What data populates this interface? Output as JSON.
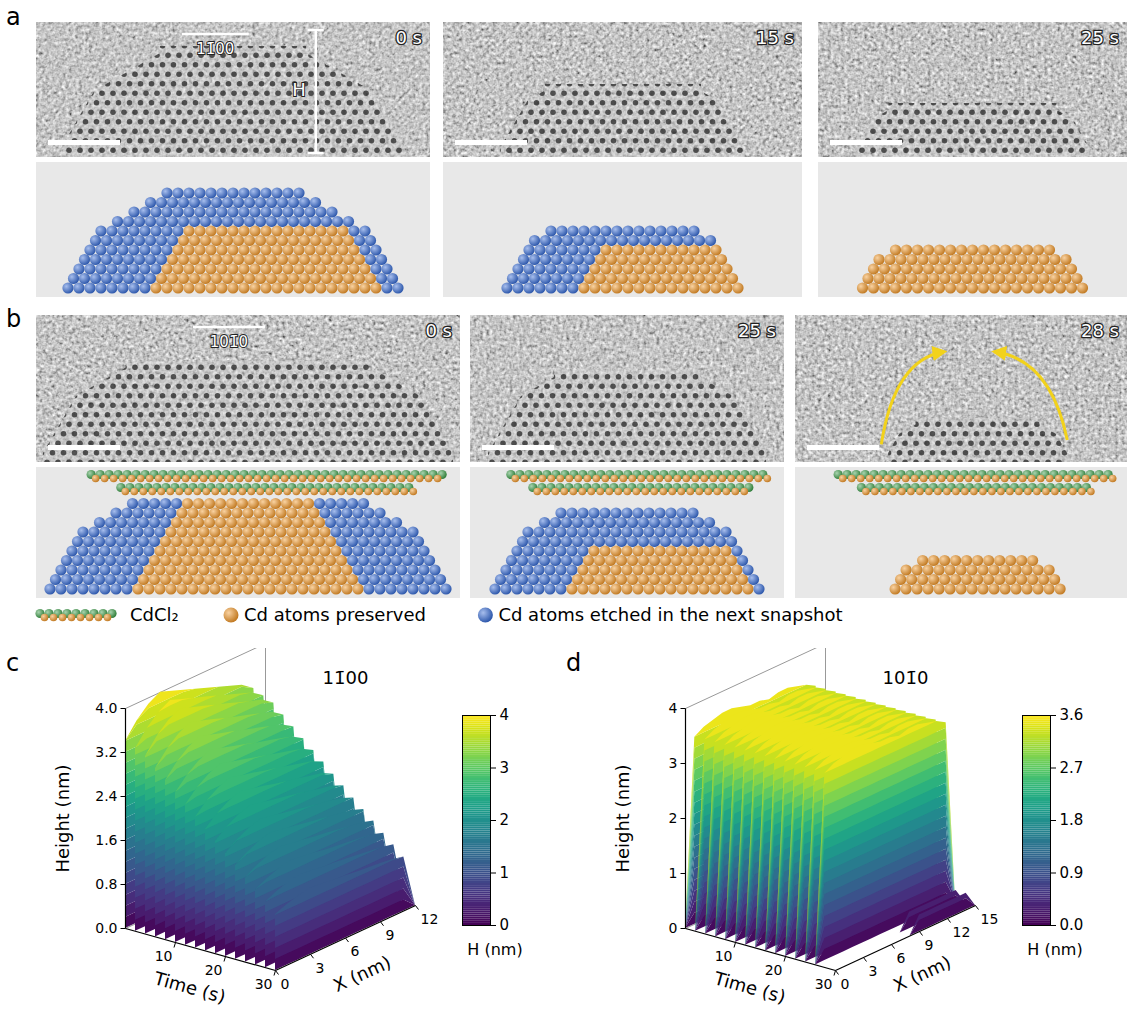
{
  "figure": {
    "panels": [
      {
        "letter": "a",
        "images": [
          {
            "time": "0 s",
            "direction": "11̄00",
            "height_marker": "H"
          },
          {
            "time": "15 s"
          },
          {
            "time": "25 s"
          }
        ]
      },
      {
        "letter": "b",
        "images": [
          {
            "time": "0 s",
            "direction": "101̄0"
          },
          {
            "time": "25 s"
          },
          {
            "time": "28 s"
          }
        ]
      }
    ],
    "legend": [
      {
        "label": "CdCl₂",
        "colors": [
          "#3e9e4a",
          "#f29a2e"
        ]
      },
      {
        "label": "Cd atoms preserved",
        "color": "#f29a2e"
      },
      {
        "label": "Cd atoms etched in the next snapshot",
        "color": "#3b6fd6"
      }
    ]
  },
  "chart_data": [
    {
      "panel": "c",
      "type": "surface",
      "title": "11̄00",
      "xlabel": "X (nm)",
      "ylabel": "Time (s)",
      "zlabel": "Height (nm)",
      "x": [
        0,
        1,
        2,
        3,
        4,
        5,
        6,
        7,
        8,
        9,
        10,
        11,
        12
      ],
      "y": [
        0,
        2,
        4,
        6,
        8,
        10,
        12,
        14,
        16,
        18,
        20,
        22,
        24,
        26,
        28,
        30
      ],
      "values": [
        [
          3.4,
          3.68,
          3.88,
          4.0,
          3.92,
          3.84,
          3.76,
          3.68,
          3.6,
          3.52,
          3.44,
          3.28,
          0
        ],
        [
          3.32,
          3.59,
          3.78,
          3.9,
          3.82,
          3.74,
          3.67,
          3.59,
          3.51,
          3.43,
          3.35,
          3.2,
          0
        ],
        [
          3.23,
          3.5,
          3.69,
          3.8,
          3.72,
          3.65,
          3.57,
          3.5,
          3.42,
          3.34,
          3.27,
          3.12,
          0
        ],
        [
          3.06,
          3.31,
          3.49,
          3.6,
          3.53,
          3.46,
          3.38,
          3.31,
          3.24,
          3.17,
          3.1,
          2.95,
          0
        ],
        [
          2.89,
          3.13,
          3.3,
          3.4,
          3.33,
          3.26,
          3.2,
          3.13,
          3.06,
          2.99,
          2.92,
          2.79,
          0
        ],
        [
          2.72,
          2.94,
          3.1,
          3.2,
          3.14,
          3.07,
          3.01,
          2.94,
          2.88,
          2.82,
          2.75,
          2.62,
          0
        ],
        [
          2.55,
          2.76,
          2.91,
          3.0,
          2.94,
          2.88,
          2.82,
          2.76,
          2.7,
          2.64,
          2.58,
          2.46,
          0
        ],
        [
          2.38,
          2.58,
          2.72,
          2.8,
          2.74,
          2.69,
          2.63,
          2.58,
          2.52,
          2.46,
          2.41,
          2.3,
          0
        ],
        [
          2.21,
          2.39,
          2.52,
          2.6,
          2.55,
          2.5,
          2.44,
          2.39,
          2.34,
          2.29,
          2.24,
          2.13,
          0
        ],
        [
          2.04,
          2.21,
          2.33,
          2.4,
          2.35,
          2.3,
          2.26,
          2.21,
          2.16,
          2.11,
          2.06,
          1.97,
          0
        ],
        [
          1.87,
          2.02,
          2.13,
          2.2,
          2.16,
          2.11,
          2.07,
          2.02,
          1.98,
          1.94,
          1.89,
          1.8,
          0
        ],
        [
          1.7,
          1.84,
          1.94,
          2.0,
          1.96,
          1.92,
          1.88,
          1.84,
          1.8,
          1.76,
          1.72,
          1.64,
          0
        ],
        [
          1.53,
          1.66,
          1.75,
          1.8,
          1.76,
          1.73,
          1.69,
          1.66,
          1.62,
          1.58,
          1.55,
          1.48,
          0
        ],
        [
          1.36,
          1.47,
          1.55,
          1.6,
          1.57,
          1.54,
          1.5,
          1.47,
          1.44,
          1.41,
          1.38,
          1.31,
          0
        ],
        [
          1.19,
          1.29,
          1.36,
          1.4,
          1.37,
          1.34,
          1.32,
          1.29,
          1.26,
          1.23,
          1.2,
          1.15,
          0
        ],
        [
          1.02,
          1.1,
          1.16,
          1.2,
          1.18,
          1.15,
          1.13,
          1.1,
          1.08,
          1.06,
          1.03,
          0.98,
          0
        ]
      ],
      "xlim": [
        0,
        12
      ],
      "xticks": [
        0,
        3,
        6,
        9,
        12
      ],
      "ylim": [
        0,
        30
      ],
      "yticks": [
        10,
        20,
        30
      ],
      "zlim": [
        0,
        4
      ],
      "zticks": [
        {
          "value": 0,
          "label": "0.0"
        },
        0.8,
        1.6,
        2.4,
        3.2,
        {
          "value": 4,
          "label": "4.0"
        }
      ],
      "colorbar": {
        "label": "H (nm)",
        "range": [
          0,
          4
        ],
        "ticks": [
          0,
          1,
          2,
          3,
          4
        ]
      }
    },
    {
      "panel": "d",
      "type": "surface",
      "title": "101̄0",
      "xlabel": "X (nm)",
      "ylabel": "Time (s)",
      "zlabel": "Height (nm)",
      "x": [
        0,
        1,
        2,
        3,
        4,
        5,
        6,
        7,
        8,
        9,
        10,
        11,
        12,
        13,
        14,
        15
      ],
      "y": [
        0,
        2,
        4,
        6,
        8,
        10,
        12,
        14,
        16,
        18,
        20,
        22,
        24,
        26,
        28,
        30
      ],
      "values": [
        [
          0,
          3.4,
          3.5,
          3.55,
          3.6,
          3.6,
          3.55,
          3.5,
          3.5,
          3.45,
          3.5,
          3.5,
          3.45,
          3.4,
          3.3,
          0
        ],
        [
          0,
          3.4,
          3.5,
          3.55,
          3.6,
          3.6,
          3.55,
          3.5,
          3.5,
          3.45,
          3.5,
          3.5,
          3.45,
          3.4,
          3.3,
          0
        ],
        [
          0,
          3.4,
          3.5,
          3.55,
          3.6,
          3.6,
          3.55,
          3.5,
          3.5,
          3.45,
          3.5,
          3.5,
          3.45,
          3.4,
          3.3,
          0
        ],
        [
          0,
          3.4,
          3.5,
          3.55,
          3.6,
          3.6,
          3.55,
          3.5,
          3.5,
          3.45,
          3.5,
          3.5,
          3.45,
          3.4,
          3.3,
          0
        ],
        [
          0,
          3.4,
          3.5,
          3.55,
          3.6,
          3.6,
          3.55,
          3.5,
          3.5,
          3.45,
          3.5,
          3.5,
          3.45,
          3.4,
          3.3,
          0
        ],
        [
          0,
          3.4,
          3.5,
          3.55,
          3.6,
          3.6,
          3.55,
          3.5,
          3.5,
          3.45,
          3.5,
          3.5,
          3.45,
          3.4,
          3.3,
          0
        ],
        [
          0,
          3.4,
          3.5,
          3.55,
          3.6,
          3.6,
          3.55,
          3.5,
          3.5,
          3.45,
          3.5,
          3.5,
          3.45,
          3.4,
          3.3,
          0
        ],
        [
          0,
          3.4,
          3.5,
          3.55,
          3.6,
          3.6,
          3.55,
          3.5,
          3.5,
          3.45,
          3.5,
          3.5,
          3.45,
          3.4,
          3.3,
          0
        ],
        [
          0,
          3.4,
          3.5,
          3.55,
          3.6,
          3.6,
          3.55,
          3.5,
          3.5,
          3.45,
          3.5,
          3.5,
          3.45,
          3.4,
          3.3,
          0
        ],
        [
          0,
          3.4,
          3.5,
          3.55,
          3.6,
          3.6,
          3.55,
          3.5,
          3.5,
          3.45,
          3.5,
          3.5,
          3.45,
          3.4,
          3.3,
          0
        ],
        [
          0,
          3.4,
          3.5,
          3.55,
          3.6,
          3.6,
          3.55,
          3.5,
          3.5,
          3.45,
          3.5,
          3.5,
          3.45,
          3.4,
          3.3,
          0
        ],
        [
          0,
          3.4,
          3.5,
          3.55,
          3.6,
          3.6,
          3.55,
          3.5,
          3.5,
          3.45,
          3.5,
          3.5,
          3.45,
          3.4,
          3.3,
          0
        ],
        [
          0,
          3.4,
          3.5,
          3.55,
          3.6,
          3.6,
          3.55,
          3.5,
          3.5,
          3.45,
          3.5,
          3.5,
          3.45,
          3.4,
          3.3,
          0
        ],
        [
          0,
          3.4,
          3.5,
          3.55,
          3.6,
          3.6,
          3.55,
          3.5,
          3.5,
          3.45,
          3.5,
          3.5,
          3.45,
          3.4,
          3.3,
          0
        ],
        [
          0,
          0,
          0,
          0,
          0,
          0,
          0,
          0,
          0,
          0.3,
          0.3,
          0.3,
          0.3,
          0.3,
          0.3,
          0
        ],
        [
          0,
          0,
          0,
          0,
          0,
          0,
          0,
          0,
          0,
          0.3,
          0.3,
          0.3,
          0.3,
          0.3,
          0.3,
          0
        ]
      ],
      "xlim": [
        0,
        15
      ],
      "xticks": [
        0,
        3,
        6,
        9,
        12,
        15
      ],
      "ylim": [
        0,
        30
      ],
      "yticks": [
        10,
        20,
        30
      ],
      "zlim": [
        0,
        4
      ],
      "zticks": [
        0,
        1,
        2,
        3,
        4
      ],
      "colorbar": {
        "label": "H (nm)",
        "range": [
          0,
          3.6
        ],
        "ticks": [
          {
            "value": 0,
            "label": "0.0"
          },
          0.9,
          1.8,
          2.7,
          3.6
        ]
      }
    }
  ]
}
